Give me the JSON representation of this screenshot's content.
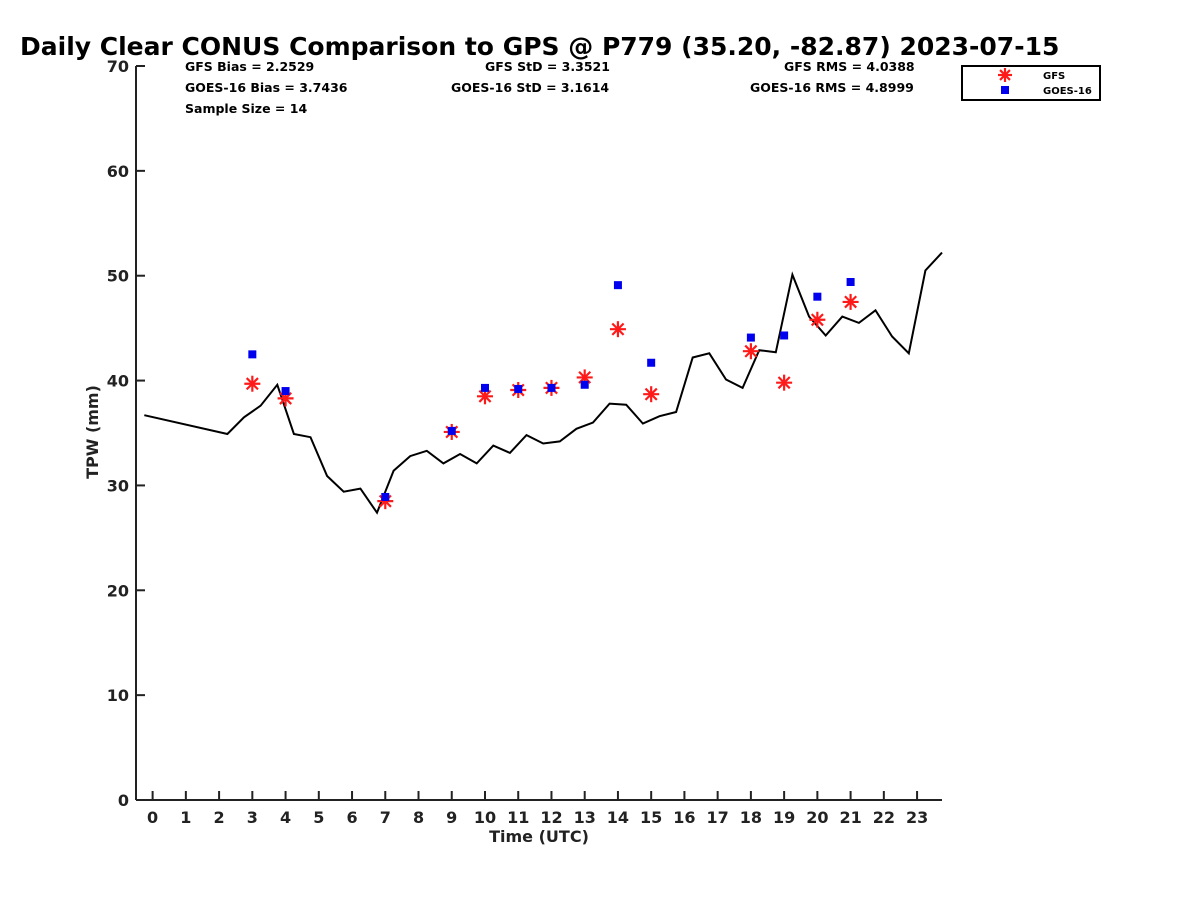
{
  "chart_data": {
    "type": "line",
    "title": "Daily Clear CONUS Comparison to GPS @ P779 (35.20, -82.87) 2023-07-15",
    "xlabel": "Time (UTC)",
    "ylabel": "TPW (mm)",
    "xlim": [
      -0.5,
      23.75
    ],
    "ylim": [
      0,
      70
    ],
    "x_ticks": [
      0,
      1,
      2,
      3,
      4,
      5,
      6,
      7,
      8,
      9,
      10,
      11,
      12,
      13,
      14,
      15,
      16,
      17,
      18,
      19,
      20,
      21,
      22,
      23
    ],
    "y_ticks": [
      0,
      10,
      20,
      30,
      40,
      50,
      60,
      70
    ],
    "grid": false,
    "legend_position": "top-right",
    "stats": {
      "gfs_bias": "GFS Bias = 2.2529",
      "goes_bias": "GOES-16 Bias = 3.7436",
      "sample_size": "Sample Size = 14",
      "gfs_std": "GFS StD = 3.3521",
      "goes_std": "GOES-16 StD = 3.1614",
      "gfs_rms": "GFS RMS = 4.0388",
      "goes_rms": "GOES-16 RMS = 4.8999"
    },
    "series": [
      {
        "name": "",
        "kind": "line",
        "color": "#000000",
        "x": [
          -0.25,
          2.25,
          2.75,
          3.25,
          3.75,
          4.25,
          4.75,
          5.25,
          5.75,
          6.25,
          6.75,
          7.25,
          7.75,
          8.25,
          8.75,
          9.25,
          9.75,
          10.25,
          10.75,
          11.25,
          11.75,
          12.25,
          12.75,
          13.25,
          13.75,
          14.25,
          14.75,
          15.25,
          15.75,
          16.25,
          16.75,
          17.25,
          17.75,
          18.25,
          18.75,
          19.25,
          19.75,
          20.25,
          20.75,
          21.25,
          21.75,
          22.25,
          22.75,
          23.25,
          23.75
        ],
        "y": [
          36.7,
          34.9,
          36.5,
          37.6,
          39.6,
          34.9,
          34.6,
          30.9,
          29.4,
          29.7,
          27.4,
          31.4,
          32.8,
          33.3,
          32.1,
          33.0,
          32.1,
          33.8,
          33.1,
          34.8,
          34.0,
          34.2,
          35.4,
          36.0,
          37.8,
          37.7,
          35.9,
          36.6,
          37.0,
          42.2,
          42.6,
          40.1,
          39.3,
          42.9,
          42.7,
          50.1,
          46.1,
          44.3,
          46.1,
          45.5,
          46.7,
          44.2,
          42.6,
          50.5,
          52.2
        ]
      },
      {
        "name": "GFS",
        "kind": "scatter",
        "marker": "asterisk",
        "color": "#ff1a1a",
        "x": [
          3,
          4,
          7,
          9,
          10,
          11,
          12,
          13,
          14,
          15,
          18,
          19,
          20,
          21
        ],
        "y": [
          39.7,
          38.3,
          28.5,
          35.1,
          38.5,
          39.1,
          39.3,
          40.3,
          44.9,
          38.7,
          42.8,
          39.8,
          45.8,
          47.5
        ]
      },
      {
        "name": "GOES-16",
        "kind": "scatter",
        "marker": "square",
        "color": "#0000ee",
        "x": [
          3,
          4,
          7,
          9,
          10,
          11,
          12,
          13,
          14,
          15,
          18,
          19,
          20,
          21
        ],
        "y": [
          42.5,
          39.0,
          28.9,
          35.2,
          39.3,
          39.2,
          39.3,
          39.6,
          49.1,
          41.7,
          44.1,
          44.3,
          48.0,
          49.4
        ]
      }
    ]
  }
}
